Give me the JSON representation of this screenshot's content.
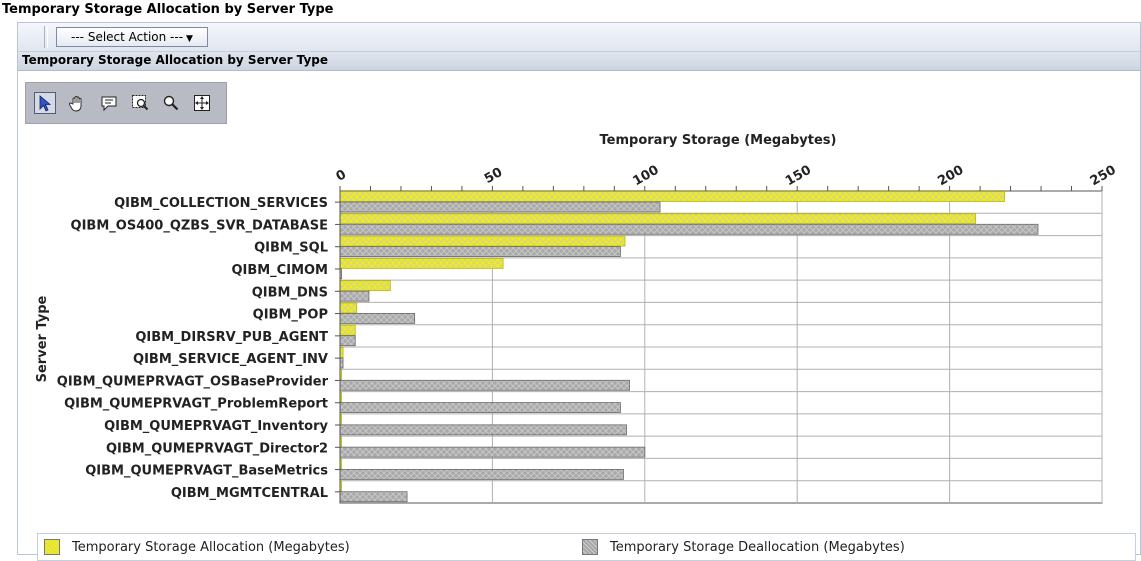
{
  "page": {
    "title": "Temporary Storage Allocation by Server Type"
  },
  "toolbar": {
    "select_action": "--- Select Action ---"
  },
  "section": {
    "title": "Temporary Storage Allocation by Server Type"
  },
  "tools": [
    {
      "icon": "pointer-icon",
      "active": true
    },
    {
      "icon": "hand-pan-icon",
      "active": false
    },
    {
      "icon": "speech-bubble-icon",
      "active": false
    },
    {
      "icon": "zoom-box-icon",
      "active": false
    },
    {
      "icon": "magnifier-icon",
      "active": false
    },
    {
      "icon": "crosshair-move-icon",
      "active": false
    }
  ],
  "chart_data": {
    "type": "bar",
    "orientation": "horizontal",
    "title": "",
    "xlabel": "Temporary Storage (Megabytes)",
    "ylabel": "Server Type",
    "xlim": [
      0,
      250
    ],
    "xticks": [
      0,
      50,
      100,
      150,
      200,
      250
    ],
    "x_axis_position": "top",
    "grid": true,
    "legend_position": "bottom",
    "categories": [
      "QIBM_COLLECTION_SERVICES",
      "QIBM_OS400_QZBS_SVR_DATABASE",
      "QIBM_SQL",
      "QIBM_CIMOM",
      "QIBM_DNS",
      "QIBM_POP",
      "QIBM_DIRSRV_PUB_AGENT",
      "QIBM_SERVICE_AGENT_INV",
      "QIBM_QUMEPRVAGT_OSBaseProvider",
      "QIBM_QUMEPRVAGT_ProblemReport",
      "QIBM_QUMEPRVAGT_Inventory",
      "QIBM_QUMEPRVAGT_Director2",
      "QIBM_QUMEPRVAGT_BaseMetrics",
      "QIBM_MGMTCENTRAL"
    ],
    "series": [
      {
        "name": "Temporary Storage Allocation (Megabytes)",
        "color": "#f0f000",
        "values": [
          218,
          208.5,
          93.5,
          53.5,
          16.5,
          5.5,
          5,
          1,
          0.5,
          0.5,
          0.5,
          0.5,
          0.5,
          0.5
        ]
      },
      {
        "name": "Temporary Storage Deallocation (Megabytes)",
        "color": "#a8a8a8",
        "values": [
          105,
          229,
          92,
          0.5,
          9.5,
          24.5,
          5,
          1,
          95,
          92,
          94,
          100,
          93,
          22
        ]
      }
    ]
  }
}
